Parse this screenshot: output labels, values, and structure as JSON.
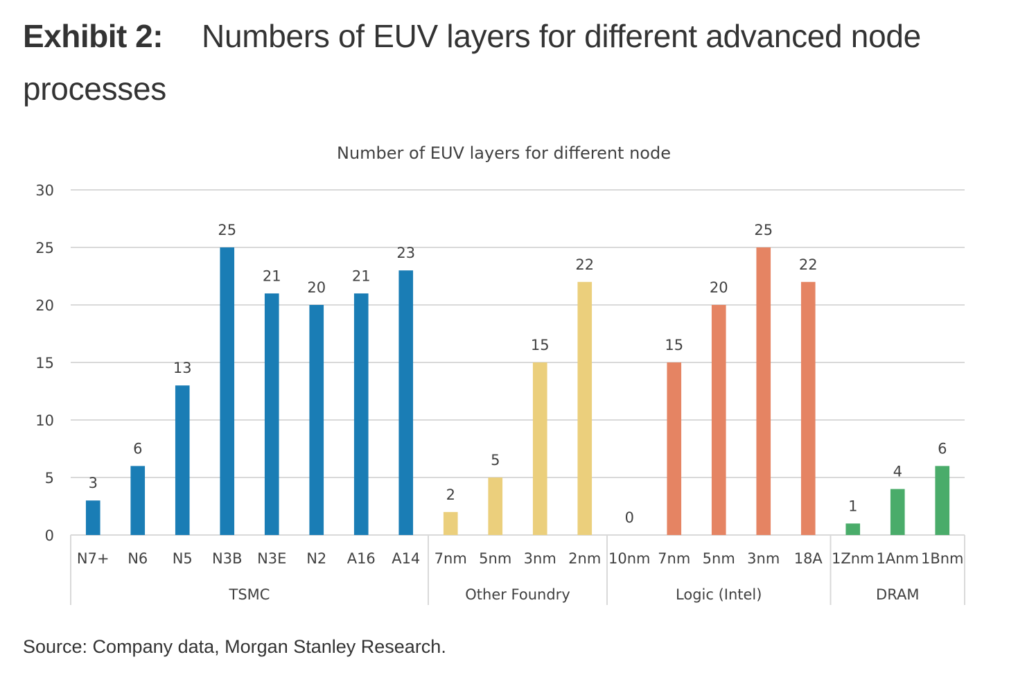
{
  "exhibit": {
    "label": "Exhibit 2:",
    "title": "Numbers of EUV layers for different advanced node processes"
  },
  "source": "Source: Company data, Morgan Stanley Research.",
  "chart_data": {
    "type": "bar",
    "title": "Number of EUV layers for different node",
    "xlabel": "",
    "ylabel": "",
    "ylim": [
      0,
      30
    ],
    "yticks": [
      0,
      5,
      10,
      15,
      20,
      25,
      30
    ],
    "grid": true,
    "data_labels": true,
    "groups": [
      {
        "name": "TSMC",
        "color": "#1a7db5",
        "categories": [
          "N7+",
          "N6",
          "N5",
          "N3B",
          "N3E",
          "N2",
          "A16",
          "A14"
        ],
        "values": [
          3,
          6,
          13,
          25,
          21,
          20,
          21,
          23
        ]
      },
      {
        "name": "Other Foundry",
        "color": "#ebcf7c",
        "categories": [
          "7nm",
          "5nm",
          "3nm",
          "2nm"
        ],
        "values": [
          2,
          5,
          15,
          22
        ]
      },
      {
        "name": "Logic (Intel)",
        "color": "#e58463",
        "categories": [
          "10nm",
          "7nm",
          "5nm",
          "3nm",
          "18A"
        ],
        "values": [
          0,
          15,
          20,
          25,
          22
        ]
      },
      {
        "name": "DRAM",
        "color": "#4aac6a",
        "categories": [
          "1Znm",
          "1Anm",
          "1Bnm"
        ],
        "values": [
          1,
          4,
          6
        ]
      }
    ]
  }
}
